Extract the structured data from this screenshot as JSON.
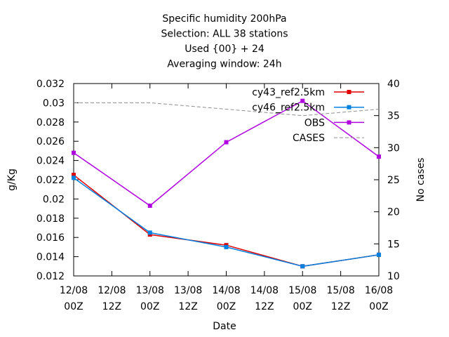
{
  "chart_data": {
    "type": "line",
    "title_lines": [
      "Specific humidity 200hPa",
      "Selection: ALL      38 stations",
      "Used {00} + 24",
      "Averaging window: 24h"
    ],
    "xlabel": "Date",
    "ylabel": "g/Kg",
    "y2label": "No cases",
    "x_ticks": [
      {
        "line1": "12/08",
        "line2": "00Z"
      },
      {
        "line1": "12/08",
        "line2": "12Z"
      },
      {
        "line1": "13/08",
        "line2": "00Z"
      },
      {
        "line1": "13/08",
        "line2": "12Z"
      },
      {
        "line1": "14/08",
        "line2": "00Z"
      },
      {
        "line1": "14/08",
        "line2": "12Z"
      },
      {
        "line1": "15/08",
        "line2": "00Z"
      },
      {
        "line1": "15/08",
        "line2": "12Z"
      },
      {
        "line1": "16/08",
        "line2": "00Z"
      }
    ],
    "xlim": [
      0,
      8
    ],
    "ylim": [
      0.012,
      0.032
    ],
    "y_ticks": [
      "0.012",
      "0.014",
      "0.016",
      "0.018",
      "0.02",
      "0.022",
      "0.024",
      "0.026",
      "0.028",
      "0.03",
      "0.032"
    ],
    "y2lim": [
      10,
      40
    ],
    "y2_ticks": [
      "10",
      "15",
      "20",
      "25",
      "30",
      "35",
      "40"
    ],
    "legend_position": "top-right",
    "series": [
      {
        "name": "cy43_ref2.5km",
        "axis": "left",
        "color": "#e00000",
        "style": "solid",
        "x": [
          0,
          2,
          4,
          6,
          8
        ],
        "values": [
          0.0225,
          0.0163,
          0.0152,
          0.013,
          0.0142
        ]
      },
      {
        "name": "cy46_ref2.5km",
        "axis": "left",
        "color": "#0080e0",
        "style": "solid",
        "x": [
          0,
          2,
          4,
          6,
          8
        ],
        "values": [
          0.0222,
          0.0165,
          0.015,
          0.013,
          0.0142
        ]
      },
      {
        "name": "OBS",
        "axis": "left",
        "color": "#b000e0",
        "style": "solid",
        "x": [
          0,
          2,
          4,
          6,
          8
        ],
        "values": [
          0.0248,
          0.0193,
          0.0259,
          0.0302,
          0.0244
        ]
      },
      {
        "name": "CASES",
        "axis": "right",
        "color": "#909090",
        "style": "dashed",
        "x": [
          0,
          2,
          4,
          6,
          8
        ],
        "values": [
          37,
          37,
          36,
          35,
          36
        ]
      }
    ]
  }
}
